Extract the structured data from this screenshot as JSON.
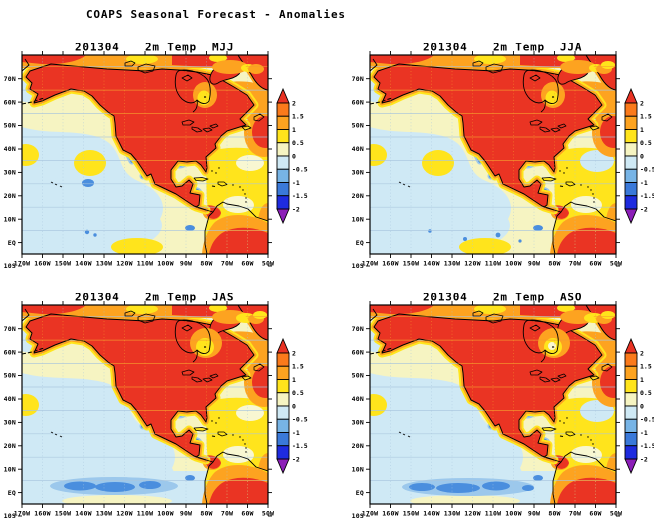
{
  "title": "COAPS Seasonal Forecast - Anomalies",
  "panels": [
    {
      "run": "201304",
      "variable": "2m Temp",
      "season": "MJJ",
      "equator_cold_band": "specks",
      "atlantic_cool_pocket": false,
      "ne_canada_warm_patch": "small"
    },
    {
      "run": "201304",
      "variable": "2m Temp",
      "season": "JJA",
      "equator_cold_band": "specks",
      "atlantic_cool_pocket": true,
      "ne_canada_warm_patch": "small"
    },
    {
      "run": "201304",
      "variable": "2m Temp",
      "season": "JAS",
      "equator_cold_band": "strong",
      "atlantic_cool_pocket": false,
      "ne_canada_warm_patch": "large"
    },
    {
      "run": "201304",
      "variable": "2m Temp",
      "season": "ASO",
      "equator_cold_band": "strong",
      "atlantic_cool_pocket": true,
      "ne_canada_warm_patch": "large"
    }
  ],
  "axes": {
    "y_labels": [
      "70N",
      "60N",
      "50N",
      "40N",
      "30N",
      "20N",
      "10N",
      "EQ",
      "10S"
    ],
    "x_labels": [
      "170W",
      "160W",
      "150W",
      "140W",
      "130W",
      "120W",
      "110W",
      "100W",
      "90W",
      "80W",
      "70W",
      "60W",
      "50W"
    ]
  },
  "colorbar": {
    "labels": [
      "2",
      "1.5",
      "1",
      "0.5",
      "0",
      "-0.5",
      "-1",
      "-1.5",
      "-2"
    ],
    "segment_colors": [
      "#fb7a1b",
      "#fda320",
      "#ffe41c",
      "#f6f4c2",
      "#cfe9f5",
      "#77b4e6",
      "#3a79d9",
      "#1e2bdf"
    ],
    "arrow_top_color": "#e93223",
    "arrow_bottom_color": "#8c1eb8"
  },
  "map_colors": {
    "red": "#ea3423",
    "deep_orange": "#fb7a1b",
    "orange": "#fda320",
    "yellow": "#ffe41c",
    "pale_yellow": "#f6f4c2",
    "cream": "#f8f7d2",
    "pale_blue": "#cfe9f5",
    "light_blue": "#9cc8ec",
    "mid_blue": "#4a8ede",
    "outline": "#000000",
    "grid_ocean": "#a9c6de",
    "grid_land": "#f59b2e"
  }
}
